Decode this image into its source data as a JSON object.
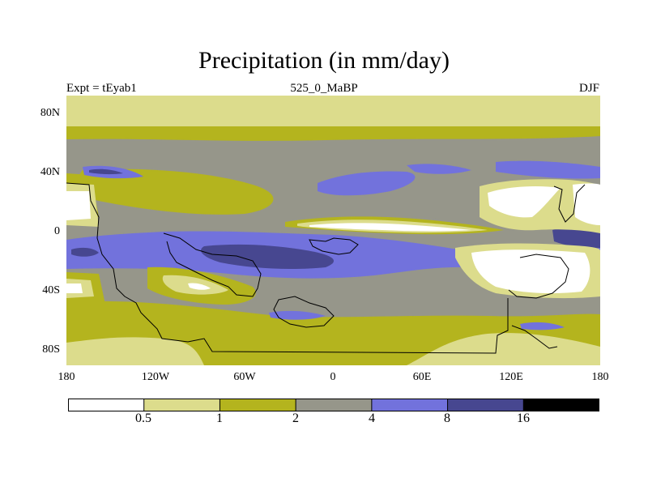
{
  "title": "Precipitation (in mm/day)",
  "subtitle_left": "Expt = tEyab1",
  "subtitle_center": "525_0_MaBP",
  "subtitle_right": "DJF",
  "y_ticks": [
    "80N",
    "40N",
    "0",
    "40S",
    "80S"
  ],
  "x_ticks": [
    "180",
    "120W",
    "60W",
    "0",
    "60E",
    "120E",
    "180"
  ],
  "colorbar": {
    "levels": [
      "0.5",
      "1",
      "2",
      "4",
      "8",
      "16"
    ],
    "colors": [
      "#ffffff",
      "#dcdc8c",
      "#b4b41e",
      "#96968a",
      "#7272dc",
      "#474790",
      "#000000"
    ]
  },
  "colors": {
    "white": "#ffffff",
    "pale_yellow": "#dcdc8c",
    "olive": "#b4b41e",
    "gray": "#96968a",
    "blue": "#7272dc",
    "dark_blue": "#474790",
    "coast": "#000000"
  }
}
